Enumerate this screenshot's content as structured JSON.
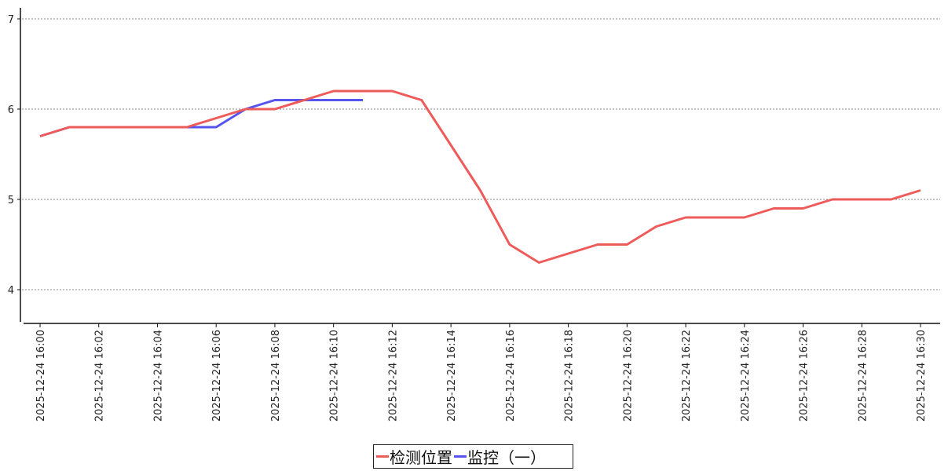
{
  "chart_data": {
    "type": "line",
    "title": "",
    "xlabel": "",
    "ylabel": "",
    "ylim": [
      3.6,
      7.1
    ],
    "yticks": [
      4,
      5,
      6,
      7
    ],
    "grid": "horizontal-dashed",
    "legend_position": "bottom-center",
    "x": [
      "2025-12-24 16:00",
      "2025-12-24 16:01",
      "2025-12-24 16:02",
      "2025-12-24 16:03",
      "2025-12-24 16:04",
      "2025-12-24 16:05",
      "2025-12-24 16:06",
      "2025-12-24 16:07",
      "2025-12-24 16:08",
      "2025-12-24 16:09",
      "2025-12-24 16:10",
      "2025-12-24 16:11",
      "2025-12-24 16:12",
      "2025-12-24 16:13",
      "2025-12-24 16:14",
      "2025-12-24 16:15",
      "2025-12-24 16:16",
      "2025-12-24 16:17",
      "2025-12-24 16:18",
      "2025-12-24 16:19",
      "2025-12-24 16:20",
      "2025-12-24 16:21",
      "2025-12-24 16:22",
      "2025-12-24 16:23",
      "2025-12-24 16:24",
      "2025-12-24 16:25",
      "2025-12-24 16:26",
      "2025-12-24 16:27",
      "2025-12-24 16:28",
      "2025-12-24 16:29",
      "2025-12-24 16:30"
    ],
    "xtick_labels": [
      "2025-12-24 16:00",
      "2025-12-24 16:02",
      "2025-12-24 16:04",
      "2025-12-24 16:06",
      "2025-12-24 16:08",
      "2025-12-24 16:10",
      "2025-12-24 16:12",
      "2025-12-24 16:14",
      "2025-12-24 16:16",
      "2025-12-24 16:18",
      "2025-12-24 16:20",
      "2025-12-24 16:22",
      "2025-12-24 16:24",
      "2025-12-24 16:26",
      "2025-12-24 16:28",
      "2025-12-24 16:30"
    ],
    "series": [
      {
        "name": "监控（一）",
        "color": "#5555ee",
        "values": [
          5.7,
          5.8,
          5.8,
          5.8,
          5.8,
          5.8,
          5.8,
          6.0,
          6.1,
          6.1,
          6.1,
          6.1,
          null,
          null,
          null,
          null,
          null,
          null,
          null,
          null,
          null,
          null,
          null,
          null,
          null,
          null,
          null,
          null,
          null,
          null,
          null
        ]
      },
      {
        "name": "检测位置",
        "color": "#ee5b5b",
        "values": [
          5.7,
          5.8,
          5.8,
          5.8,
          5.8,
          5.8,
          5.9,
          6.0,
          6.0,
          6.1,
          6.2,
          6.2,
          6.2,
          6.1,
          5.6,
          5.1,
          4.5,
          4.3,
          4.4,
          4.5,
          4.5,
          4.7,
          4.8,
          4.8,
          4.8,
          4.9,
          4.9,
          5.0,
          5.0,
          5.0,
          5.1
        ]
      }
    ],
    "legend_order": [
      "检测位置",
      "监控（一）"
    ]
  }
}
